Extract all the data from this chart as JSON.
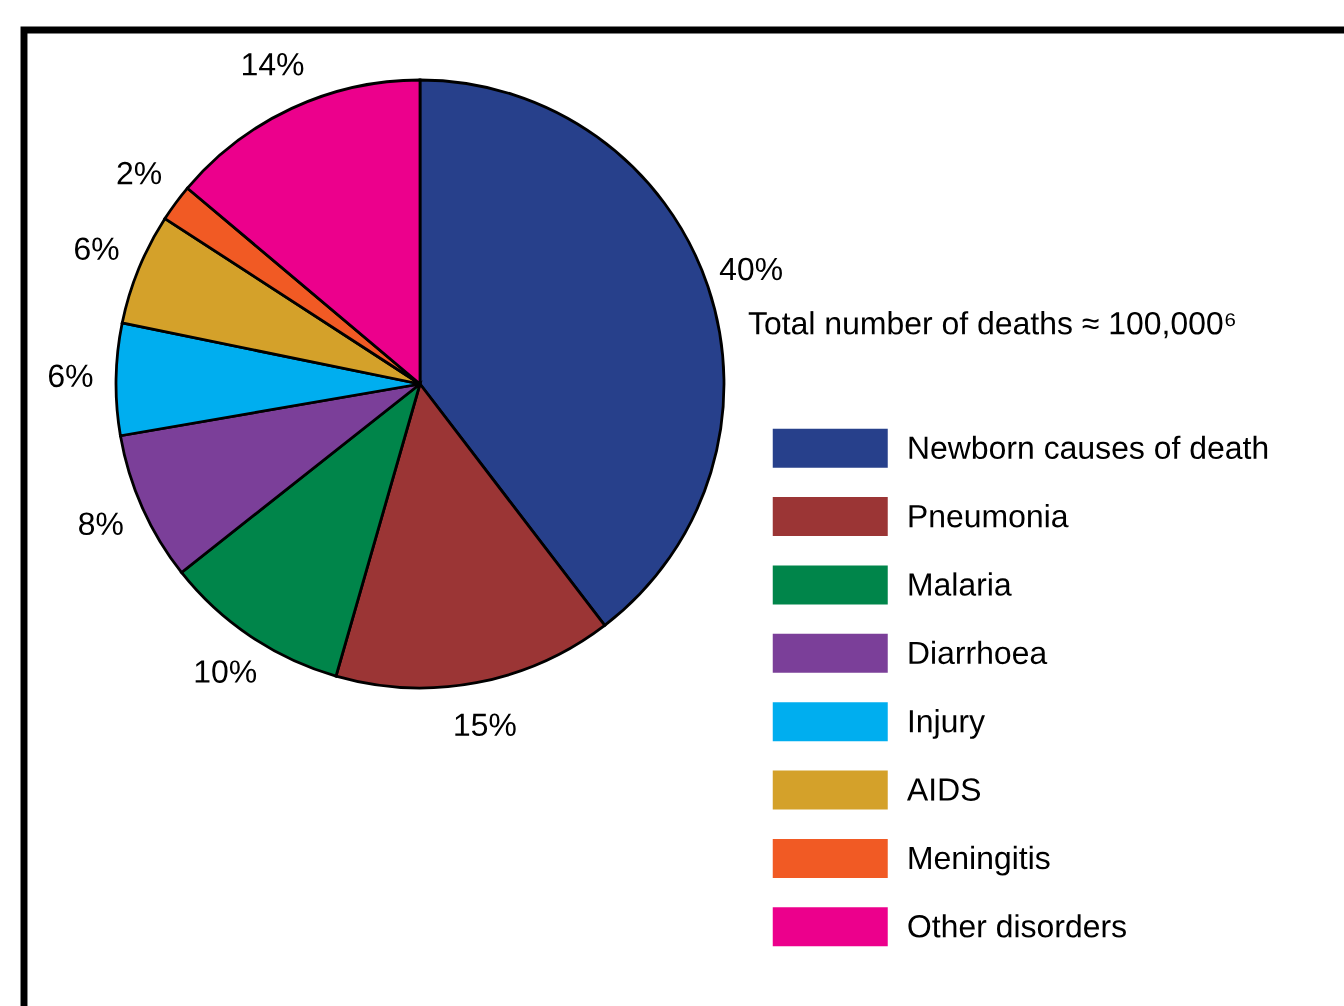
{
  "chart_data": {
    "type": "pie",
    "subtitle": "Total number of deaths ≈ 100,000⁶",
    "categories": [
      "Newborn causes of death",
      "Pneumonia",
      "Malaria",
      "Diarrhoea",
      "Injury",
      "AIDS",
      "Meningitis",
      "Other disorders"
    ],
    "values": [
      40,
      15,
      10,
      8,
      6,
      6,
      2,
      14
    ],
    "value_labels": [
      "40%",
      "15%",
      "10%",
      "8%",
      "6%",
      "6%",
      "2%",
      "14%"
    ],
    "colors": [
      "#27408b",
      "#9b3535",
      "#00854a",
      "#7b3f99",
      "#00aeef",
      "#d4a12a",
      "#f15a24",
      "#ec008c"
    ],
    "legend": "right"
  }
}
